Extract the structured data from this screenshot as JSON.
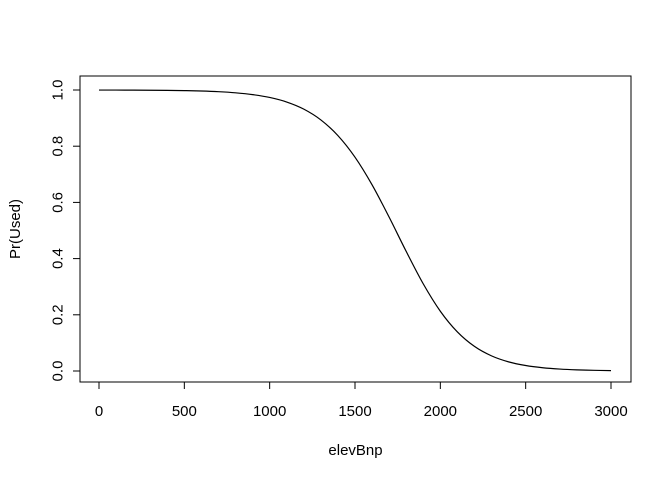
{
  "chart_data": {
    "type": "line",
    "title": "",
    "xlabel": "elevBnp",
    "ylabel": "Pr(Used)",
    "xlim": [
      0,
      3000
    ],
    "ylim": [
      0,
      1
    ],
    "grid": false,
    "x_ticks": [
      0,
      500,
      1000,
      1500,
      2000,
      2500,
      3000
    ],
    "y_ticks": [
      0.0,
      0.2,
      0.4,
      0.6,
      0.8,
      1.0
    ],
    "x_tick_labels": [
      "0",
      "500",
      "1000",
      "1500",
      "2000",
      "2500",
      "3000"
    ],
    "y_tick_labels": [
      "0.0",
      "0.2",
      "0.4",
      "0.6",
      "0.8",
      "1.0"
    ],
    "series": [
      {
        "color": "#000000",
        "x": [
          0,
          100,
          200,
          300,
          400,
          500,
          600,
          700,
          800,
          900,
          1000,
          1100,
          1200,
          1300,
          1400,
          1500,
          1600,
          1700,
          1800,
          1900,
          2000,
          2100,
          2200,
          2300,
          2400,
          2500,
          2600,
          2700,
          2800,
          2900,
          3000
        ],
        "y": [
          0.9998,
          0.9997,
          0.9995,
          0.9992,
          0.9987,
          0.9978,
          0.9964,
          0.994,
          0.99,
          0.9836,
          0.9734,
          0.9572,
          0.9319,
          0.8935,
          0.8377,
          0.7609,
          0.6626,
          0.5475,
          0.4256,
          0.31,
          0.2127,
          0.139,
          0.0875,
          0.0538,
          0.0325,
          0.0195,
          0.0116,
          0.0069,
          0.0041,
          0.0024,
          0.0014
        ]
      }
    ]
  }
}
